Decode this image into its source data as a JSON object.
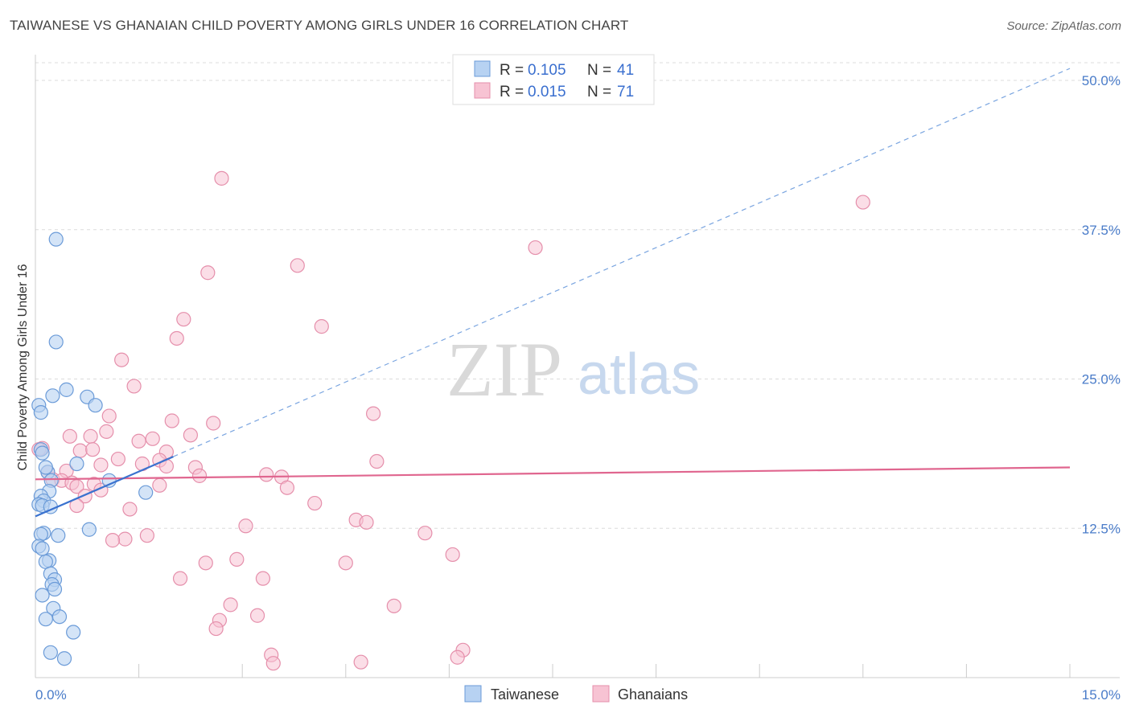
{
  "title": "TAIWANESE VS GHANAIAN CHILD POVERTY AMONG GIRLS UNDER 16 CORRELATION CHART",
  "source": "Source: ZipAtlas.com",
  "watermark": {
    "zip": "ZIP",
    "atlas": "atlas"
  },
  "colors": {
    "taiwanese_fill": "#b7d2f2",
    "taiwanese_stroke": "#6b9bd8",
    "taiwanese_line": "#3a72cf",
    "ghanaian_fill": "#f7c3d3",
    "ghanaian_stroke": "#e58fab",
    "ghanaian_line": "#e0668f",
    "grid": "#dcdcdc",
    "tick_label": "#4a7cc9"
  },
  "legend": {
    "rows": [
      {
        "r_label": "R =",
        "r_value": "0.105",
        "n_label": "N =",
        "n_value": "41"
      },
      {
        "r_label": "R =",
        "r_value": "0.015",
        "n_label": "N =",
        "n_value": "71"
      }
    ]
  },
  "chart_data": {
    "type": "scatter",
    "title": "TAIWANESE VS GHANAIAN CHILD POVERTY AMONG GIRLS UNDER 16 CORRELATION CHART",
    "xlabel": "",
    "ylabel": "Child Poverty Among Girls Under 16",
    "xlim": [
      0,
      15
    ],
    "ylim": [
      0,
      50
    ],
    "x_ticks": [
      {
        "value": 0,
        "label": "0.0%"
      },
      {
        "value": 15,
        "label": "15.0%"
      }
    ],
    "y_ticks": [
      {
        "value": 12.5,
        "label": "12.5%"
      },
      {
        "value": 25,
        "label": "25.0%"
      },
      {
        "value": 37.5,
        "label": "37.5%"
      },
      {
        "value": 50,
        "label": "50.0%"
      }
    ],
    "legend_labels": [
      "Taiwanese",
      "Ghanaians"
    ],
    "series": [
      {
        "name": "Taiwanese",
        "R": 0.105,
        "N": 41,
        "trend": {
          "x0": 0,
          "y0": 13.5,
          "x1": 2.0,
          "y1": 18.5,
          "dashed_to_x": 15,
          "dashed_to_y": 51
        },
        "points": [
          [
            0.3,
            36.7
          ],
          [
            0.3,
            28.1
          ],
          [
            0.45,
            24.1
          ],
          [
            0.25,
            23.6
          ],
          [
            0.75,
            23.5
          ],
          [
            0.87,
            22.8
          ],
          [
            0.05,
            22.8
          ],
          [
            0.08,
            22.2
          ],
          [
            0.08,
            19.1
          ],
          [
            0.1,
            18.8
          ],
          [
            0.6,
            17.9
          ],
          [
            0.18,
            17.2
          ],
          [
            0.15,
            17.6
          ],
          [
            0.23,
            16.5
          ],
          [
            1.07,
            16.5
          ],
          [
            0.2,
            15.6
          ],
          [
            1.6,
            15.5
          ],
          [
            0.08,
            15.2
          ],
          [
            0.12,
            14.8
          ],
          [
            0.05,
            14.5
          ],
          [
            0.1,
            14.4
          ],
          [
            0.22,
            14.3
          ],
          [
            0.78,
            12.4
          ],
          [
            0.12,
            12.1
          ],
          [
            0.08,
            12.0
          ],
          [
            0.33,
            11.9
          ],
          [
            0.05,
            11.0
          ],
          [
            0.1,
            10.8
          ],
          [
            0.2,
            9.8
          ],
          [
            0.15,
            9.7
          ],
          [
            0.22,
            8.7
          ],
          [
            0.28,
            8.2
          ],
          [
            0.24,
            7.8
          ],
          [
            0.28,
            7.4
          ],
          [
            0.1,
            6.9
          ],
          [
            0.26,
            5.8
          ],
          [
            0.35,
            5.1
          ],
          [
            0.15,
            4.9
          ],
          [
            0.55,
            3.8
          ],
          [
            0.22,
            2.1
          ],
          [
            0.42,
            1.6
          ]
        ]
      },
      {
        "name": "Ghanaians",
        "R": 0.015,
        "N": 71,
        "trend": {
          "x0": 0,
          "y0": 16.6,
          "x1": 15,
          "y1": 17.6
        },
        "points": [
          [
            2.7,
            41.8
          ],
          [
            12.0,
            39.8
          ],
          [
            7.25,
            36.0
          ],
          [
            3.8,
            34.5
          ],
          [
            2.5,
            33.9
          ],
          [
            2.15,
            30.0
          ],
          [
            4.15,
            29.4
          ],
          [
            2.05,
            28.4
          ],
          [
            1.25,
            26.6
          ],
          [
            1.43,
            24.4
          ],
          [
            4.9,
            22.1
          ],
          [
            1.07,
            21.9
          ],
          [
            1.98,
            21.5
          ],
          [
            2.58,
            21.3
          ],
          [
            0.5,
            20.2
          ],
          [
            0.8,
            20.2
          ],
          [
            2.25,
            20.3
          ],
          [
            1.7,
            20.0
          ],
          [
            1.5,
            19.8
          ],
          [
            1.03,
            20.6
          ],
          [
            0.65,
            19.0
          ],
          [
            0.83,
            19.1
          ],
          [
            1.9,
            18.9
          ],
          [
            0.1,
            19.2
          ],
          [
            0.05,
            19.1
          ],
          [
            1.2,
            18.3
          ],
          [
            1.8,
            18.2
          ],
          [
            4.95,
            18.1
          ],
          [
            1.55,
            17.9
          ],
          [
            1.9,
            17.7
          ],
          [
            0.95,
            17.8
          ],
          [
            2.32,
            17.6
          ],
          [
            0.45,
            17.3
          ],
          [
            0.18,
            17.2
          ],
          [
            3.35,
            17.0
          ],
          [
            2.38,
            16.9
          ],
          [
            3.57,
            16.8
          ],
          [
            0.25,
            16.6
          ],
          [
            0.38,
            16.5
          ],
          [
            0.53,
            16.3
          ],
          [
            0.85,
            16.2
          ],
          [
            1.8,
            16.1
          ],
          [
            0.6,
            16.0
          ],
          [
            3.65,
            15.9
          ],
          [
            0.95,
            15.7
          ],
          [
            0.72,
            15.2
          ],
          [
            4.05,
            14.6
          ],
          [
            0.6,
            14.4
          ],
          [
            1.37,
            14.1
          ],
          [
            4.65,
            13.2
          ],
          [
            4.8,
            13.0
          ],
          [
            3.05,
            12.7
          ],
          [
            5.65,
            12.1
          ],
          [
            1.62,
            11.9
          ],
          [
            1.3,
            11.6
          ],
          [
            1.12,
            11.5
          ],
          [
            6.05,
            10.3
          ],
          [
            2.92,
            9.9
          ],
          [
            2.47,
            9.6
          ],
          [
            4.5,
            9.6
          ],
          [
            2.1,
            8.3
          ],
          [
            3.3,
            8.3
          ],
          [
            2.83,
            6.1
          ],
          [
            5.2,
            6.0
          ],
          [
            3.22,
            5.2
          ],
          [
            2.67,
            4.8
          ],
          [
            2.62,
            4.1
          ],
          [
            6.2,
            2.3
          ],
          [
            3.42,
            1.9
          ],
          [
            6.12,
            1.7
          ],
          [
            3.45,
            1.2
          ],
          [
            4.72,
            1.3
          ]
        ]
      }
    ]
  }
}
